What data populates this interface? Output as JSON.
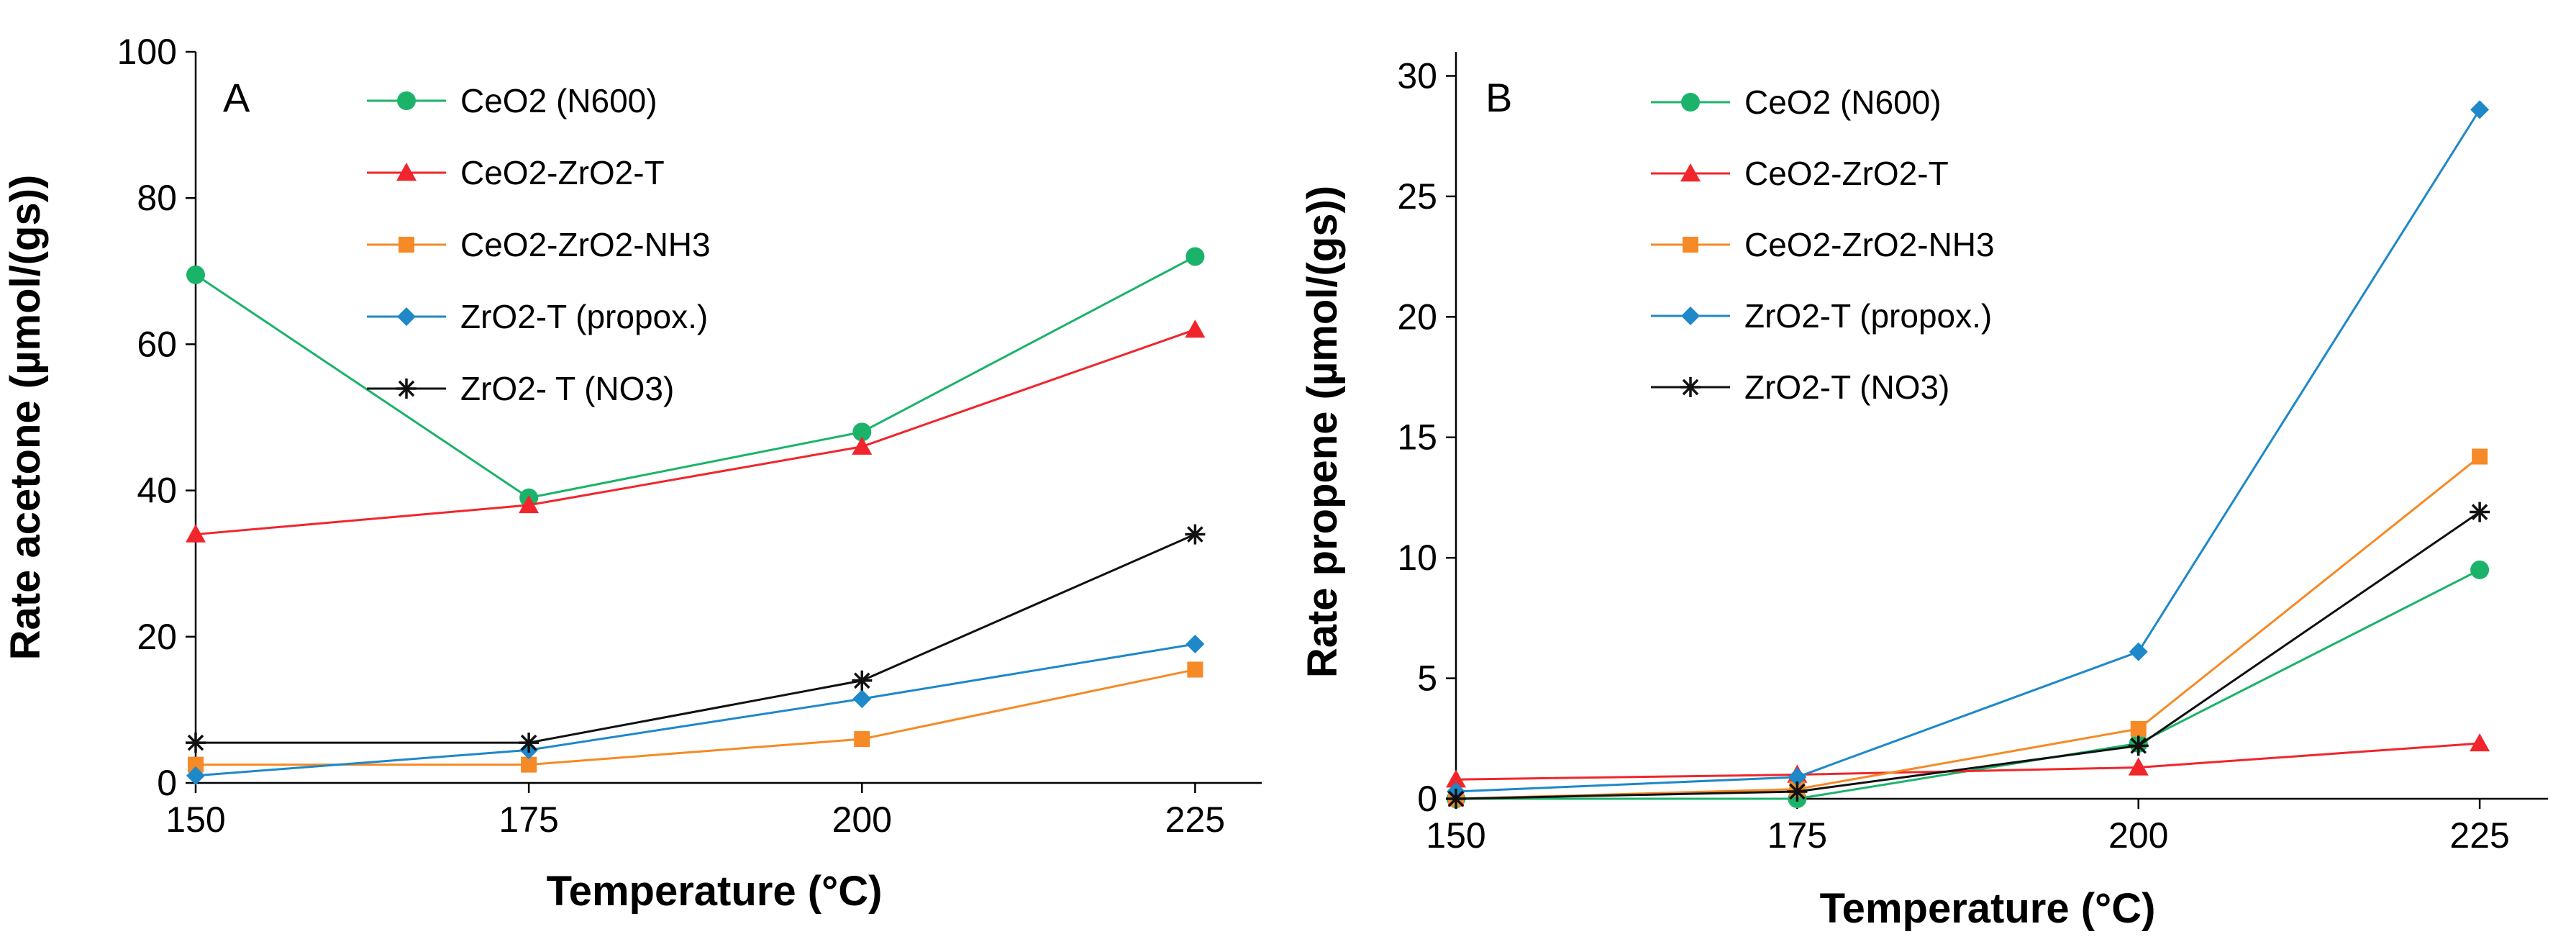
{
  "chart_data": [
    {
      "type": "line",
      "panel_label": "A",
      "xlabel": "Temperature (°C)",
      "ylabel": "Rate acetone (µmol/(gs))",
      "x": [
        150,
        175,
        200,
        225
      ],
      "x_ticks": [
        "150",
        "175",
        "200",
        "225"
      ],
      "xlim": [
        150,
        230
      ],
      "y_ticks": [
        "0",
        "20",
        "40",
        "60",
        "80",
        "100"
      ],
      "ylim": [
        0,
        100
      ],
      "grid": false,
      "legend_position": "top",
      "series": [
        {
          "name": "CeO2 (N600)",
          "color": "#1bb36a",
          "marker": "circle",
          "values": [
            69.5,
            39.0,
            48.0,
            72.0
          ]
        },
        {
          "name": "CeO2-ZrO2-T",
          "color": "#f0262c",
          "marker": "triangle",
          "values": [
            34.0,
            38.0,
            46.0,
            62.0
          ]
        },
        {
          "name": "CeO2-ZrO2-NH3",
          "color": "#f58a26",
          "marker": "square",
          "values": [
            2.5,
            2.5,
            6.0,
            15.5
          ]
        },
        {
          "name": "ZrO2-T (propox.)",
          "color": "#1e88c8",
          "marker": "diamond",
          "values": [
            1.0,
            4.5,
            11.5,
            19.0
          ]
        },
        {
          "name": "ZrO2- T (NO3)",
          "color": "#111111",
          "marker": "asterisk",
          "values": [
            5.5,
            5.5,
            14.0,
            34.0
          ]
        }
      ]
    },
    {
      "type": "line",
      "panel_label": "B",
      "xlabel": "Temperature (°C)",
      "ylabel": "Rate propene (µmol/(gs))",
      "x": [
        150,
        175,
        200,
        225
      ],
      "x_ticks": [
        "150",
        "175",
        "200",
        "225"
      ],
      "xlim": [
        150,
        230
      ],
      "y_ticks": [
        "0",
        "5",
        "10",
        "15",
        "20",
        "25",
        "30"
      ],
      "ylim": [
        0,
        31
      ],
      "grid": false,
      "legend_position": "top",
      "series": [
        {
          "name": "CeO2 (N600)",
          "color": "#1bb36a",
          "marker": "circle",
          "values": [
            0.0,
            0.0,
            2.3,
            9.5
          ]
        },
        {
          "name": "CeO2-ZrO2-T",
          "color": "#f0262c",
          "marker": "triangle",
          "values": [
            0.8,
            1.0,
            1.3,
            2.3
          ]
        },
        {
          "name": "CeO2-ZrO2-NH3",
          "color": "#f58a26",
          "marker": "square",
          "values": [
            0.0,
            0.4,
            2.9,
            14.2
          ]
        },
        {
          "name": "ZrO2-T (propox.)",
          "color": "#1e88c8",
          "marker": "diamond",
          "values": [
            0.3,
            0.9,
            6.1,
            28.6
          ]
        },
        {
          "name": "ZrO2-T (NO3)",
          "color": "#111111",
          "marker": "asterisk",
          "values": [
            0.0,
            0.3,
            2.2,
            11.9
          ]
        }
      ]
    }
  ]
}
